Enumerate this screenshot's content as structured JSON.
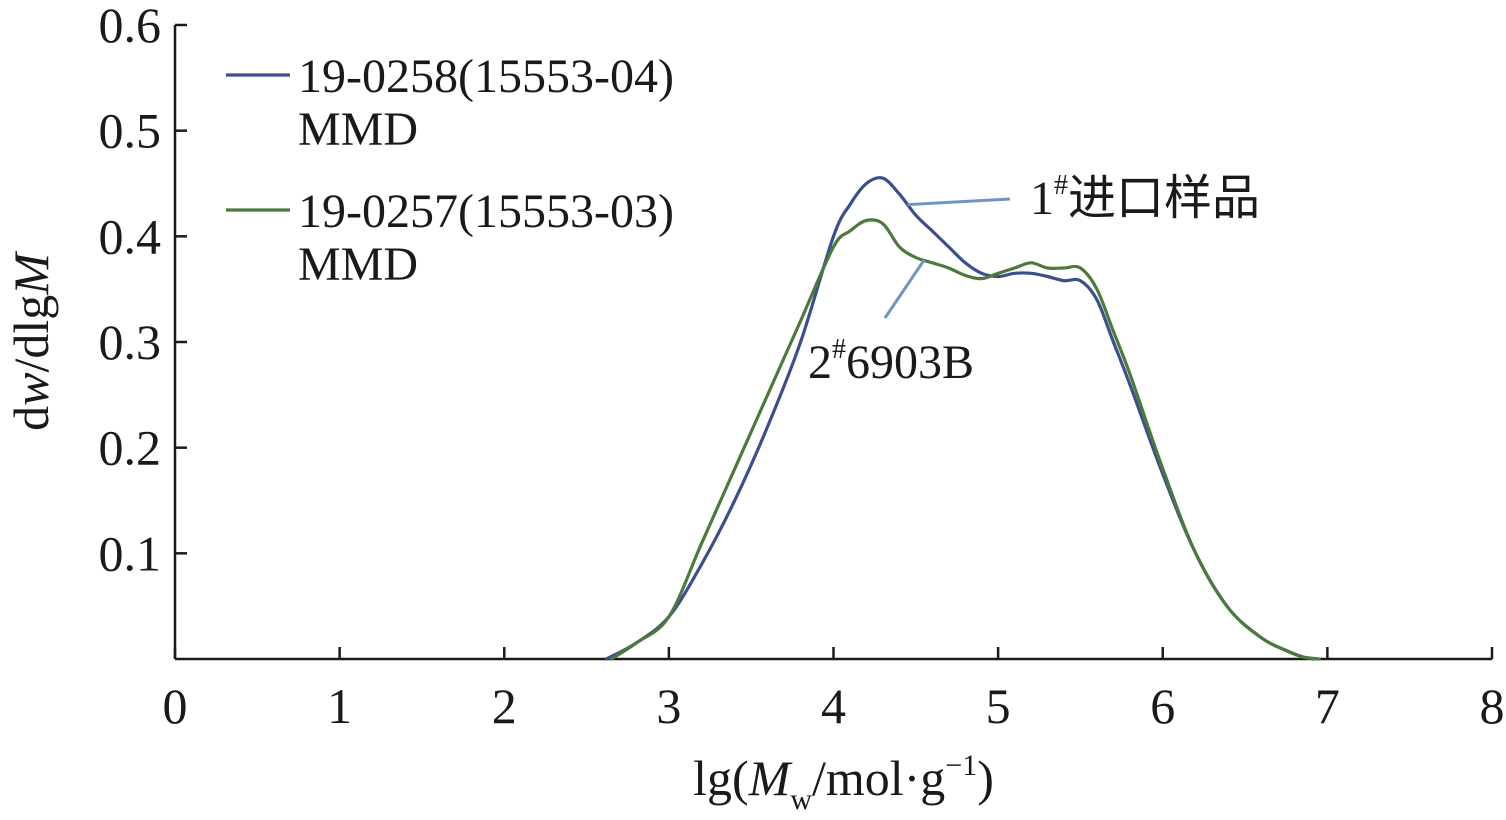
{
  "chart_data": {
    "type": "line",
    "xlabel_parts": [
      "lg(",
      "M",
      "w",
      "/mol·g",
      "−1",
      ")"
    ],
    "ylabel_parts": [
      "d",
      "w",
      "/dlg",
      "M"
    ],
    "xlim": [
      0,
      8
    ],
    "ylim": [
      0,
      0.6
    ],
    "x_ticks": [
      0,
      1,
      2,
      3,
      4,
      5,
      6,
      7,
      8
    ],
    "y_ticks": [
      0.1,
      0.2,
      0.3,
      0.4,
      0.5,
      0.6
    ],
    "grid": false,
    "legend_position": "top-left",
    "series": [
      {
        "name_line1": "19-0258(15553-04)",
        "name_line2": "MMD",
        "color": "#3b4f8f",
        "x": [
          2.62,
          2.8,
          3.0,
          3.2,
          3.4,
          3.6,
          3.8,
          4.0,
          4.1,
          4.2,
          4.3,
          4.4,
          4.5,
          4.6,
          4.7,
          4.8,
          4.9,
          5.0,
          5.1,
          5.2,
          5.3,
          5.4,
          5.5,
          5.6,
          5.7,
          5.8,
          6.0,
          6.2,
          6.4,
          6.6,
          6.75,
          6.85,
          6.92
        ],
        "y": [
          0.0,
          0.015,
          0.04,
          0.09,
          0.15,
          0.22,
          0.3,
          0.4,
          0.43,
          0.45,
          0.455,
          0.44,
          0.42,
          0.405,
          0.39,
          0.375,
          0.365,
          0.362,
          0.365,
          0.365,
          0.362,
          0.358,
          0.358,
          0.34,
          0.3,
          0.26,
          0.175,
          0.1,
          0.048,
          0.02,
          0.008,
          0.002,
          0.0
        ]
      },
      {
        "name_line1": "19-0257(15553-03)",
        "name_line2": "MMD",
        "color": "#4b7a3a",
        "x": [
          2.65,
          2.8,
          3.0,
          3.2,
          3.4,
          3.6,
          3.8,
          4.0,
          4.1,
          4.2,
          4.3,
          4.4,
          4.5,
          4.6,
          4.7,
          4.8,
          4.9,
          5.0,
          5.1,
          5.2,
          5.3,
          5.4,
          5.5,
          5.6,
          5.7,
          5.8,
          6.0,
          6.2,
          6.4,
          6.6,
          6.75,
          6.85,
          6.95
        ],
        "y": [
          0.0,
          0.015,
          0.04,
          0.11,
          0.18,
          0.25,
          0.32,
          0.39,
          0.405,
          0.415,
          0.412,
          0.39,
          0.38,
          0.375,
          0.37,
          0.363,
          0.36,
          0.365,
          0.37,
          0.375,
          0.37,
          0.37,
          0.37,
          0.35,
          0.31,
          0.27,
          0.18,
          0.1,
          0.048,
          0.02,
          0.008,
          0.002,
          0.0
        ]
      }
    ],
    "annotations": [
      {
        "label_main": "1",
        "label_sup": "#",
        "label_rest": "进口样品",
        "target_series": 0,
        "target_x": 4.45
      },
      {
        "label_main": "2",
        "label_sup": "#",
        "label_rest": "6903B",
        "target_series": 1,
        "target_x": 4.55
      }
    ]
  }
}
